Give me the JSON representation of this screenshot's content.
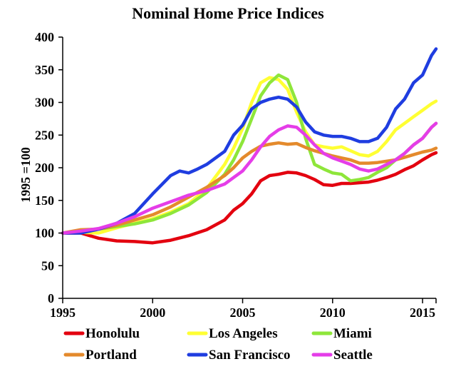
{
  "chart_data": {
    "type": "line",
    "title": "Nominal Home Price Indices",
    "xlabel": "",
    "ylabel": "1995 =100",
    "xlim": [
      1995,
      2015.75
    ],
    "ylim": [
      0,
      400
    ],
    "xticks": [
      1995,
      2000,
      2005,
      2010,
      2015
    ],
    "yticks": [
      0,
      50,
      100,
      150,
      200,
      250,
      300,
      350,
      400
    ],
    "grid": false,
    "legend_position": "bottom",
    "series": [
      {
        "name": "Honolulu",
        "color": "#e3000f",
        "points": [
          [
            1995,
            100
          ],
          [
            1996,
            100
          ],
          [
            1997,
            92
          ],
          [
            1998,
            88
          ],
          [
            1999,
            87
          ],
          [
            2000,
            85
          ],
          [
            2001,
            89
          ],
          [
            2002,
            96
          ],
          [
            2003,
            105
          ],
          [
            2004,
            120
          ],
          [
            2004.5,
            135
          ],
          [
            2005,
            145
          ],
          [
            2005.5,
            160
          ],
          [
            2006,
            180
          ],
          [
            2006.5,
            188
          ],
          [
            2007,
            190
          ],
          [
            2007.5,
            193
          ],
          [
            2008,
            192
          ],
          [
            2008.5,
            188
          ],
          [
            2009,
            182
          ],
          [
            2009.5,
            174
          ],
          [
            2010,
            173
          ],
          [
            2010.5,
            176
          ],
          [
            2011,
            176
          ],
          [
            2011.5,
            177
          ],
          [
            2012,
            178
          ],
          [
            2012.5,
            181
          ],
          [
            2013,
            185
          ],
          [
            2013.5,
            190
          ],
          [
            2014,
            197
          ],
          [
            2014.5,
            203
          ],
          [
            2015,
            212
          ],
          [
            2015.5,
            220
          ],
          [
            2015.75,
            223
          ]
        ]
      },
      {
        "name": "Los Angeles",
        "color": "#ffff33",
        "points": [
          [
            1995,
            100
          ],
          [
            1996,
            101
          ],
          [
            1997,
            100
          ],
          [
            1998,
            108
          ],
          [
            1999,
            115
          ],
          [
            2000,
            122
          ],
          [
            2001,
            132
          ],
          [
            2002,
            145
          ],
          [
            2003,
            168
          ],
          [
            2004,
            205
          ],
          [
            2004.5,
            230
          ],
          [
            2005,
            260
          ],
          [
            2005.5,
            300
          ],
          [
            2006,
            330
          ],
          [
            2006.5,
            338
          ],
          [
            2007,
            335
          ],
          [
            2007.5,
            320
          ],
          [
            2008,
            285
          ],
          [
            2008.5,
            255
          ],
          [
            2009,
            235
          ],
          [
            2009.5,
            232
          ],
          [
            2010,
            230
          ],
          [
            2010.5,
            232
          ],
          [
            2011,
            226
          ],
          [
            2011.5,
            220
          ],
          [
            2012,
            218
          ],
          [
            2012.5,
            225
          ],
          [
            2013,
            240
          ],
          [
            2013.5,
            258
          ],
          [
            2014,
            268
          ],
          [
            2014.5,
            278
          ],
          [
            2015,
            288
          ],
          [
            2015.5,
            298
          ],
          [
            2015.75,
            302
          ]
        ]
      },
      {
        "name": "Miami",
        "color": "#8ee63a",
        "points": [
          [
            1995,
            100
          ],
          [
            1996,
            102
          ],
          [
            1997,
            106
          ],
          [
            1998,
            110
          ],
          [
            1999,
            114
          ],
          [
            2000,
            120
          ],
          [
            2001,
            130
          ],
          [
            2002,
            143
          ],
          [
            2003,
            162
          ],
          [
            2004,
            190
          ],
          [
            2004.5,
            212
          ],
          [
            2005,
            240
          ],
          [
            2005.5,
            275
          ],
          [
            2006,
            310
          ],
          [
            2006.5,
            330
          ],
          [
            2007,
            342
          ],
          [
            2007.5,
            335
          ],
          [
            2008,
            300
          ],
          [
            2008.5,
            245
          ],
          [
            2009,
            205
          ],
          [
            2009.5,
            198
          ],
          [
            2010,
            192
          ],
          [
            2010.5,
            190
          ],
          [
            2011,
            180
          ],
          [
            2011.5,
            182
          ],
          [
            2012,
            185
          ],
          [
            2012.5,
            193
          ],
          [
            2013,
            200
          ],
          [
            2013.5,
            212
          ],
          [
            2014,
            222
          ],
          [
            2014.5,
            235
          ],
          [
            2015,
            245
          ],
          [
            2015.5,
            262
          ],
          [
            2015.75,
            268
          ]
        ]
      },
      {
        "name": "Portland",
        "color": "#e48a2c",
        "points": [
          [
            1995,
            100
          ],
          [
            1996,
            105
          ],
          [
            1997,
            106
          ],
          [
            1998,
            112
          ],
          [
            1999,
            120
          ],
          [
            2000,
            128
          ],
          [
            2001,
            140
          ],
          [
            2002,
            155
          ],
          [
            2003,
            170
          ],
          [
            2004,
            188
          ],
          [
            2004.5,
            200
          ],
          [
            2005,
            215
          ],
          [
            2005.5,
            225
          ],
          [
            2006,
            233
          ],
          [
            2006.5,
            236
          ],
          [
            2007,
            238
          ],
          [
            2007.5,
            236
          ],
          [
            2008,
            237
          ],
          [
            2008.5,
            231
          ],
          [
            2009,
            226
          ],
          [
            2009.5,
            222
          ],
          [
            2010,
            218
          ],
          [
            2010.5,
            215
          ],
          [
            2011,
            212
          ],
          [
            2011.5,
            207
          ],
          [
            2012,
            207
          ],
          [
            2012.5,
            208
          ],
          [
            2013,
            210
          ],
          [
            2013.5,
            212
          ],
          [
            2014,
            216
          ],
          [
            2014.5,
            220
          ],
          [
            2015,
            224
          ],
          [
            2015.5,
            227
          ],
          [
            2015.75,
            230
          ]
        ]
      },
      {
        "name": "San Francisco",
        "color": "#1f3de0",
        "points": [
          [
            1995,
            100
          ],
          [
            1996,
            100
          ],
          [
            1997,
            106
          ],
          [
            1998,
            115
          ],
          [
            1999,
            130
          ],
          [
            2000,
            160
          ],
          [
            2001,
            188
          ],
          [
            2001.5,
            195
          ],
          [
            2002,
            192
          ],
          [
            2002.5,
            198
          ],
          [
            2003,
            205
          ],
          [
            2004,
            225
          ],
          [
            2004.5,
            250
          ],
          [
            2005,
            265
          ],
          [
            2005.5,
            290
          ],
          [
            2006,
            300
          ],
          [
            2006.5,
            305
          ],
          [
            2007,
            308
          ],
          [
            2007.5,
            305
          ],
          [
            2008,
            293
          ],
          [
            2008.5,
            270
          ],
          [
            2009,
            255
          ],
          [
            2009.5,
            250
          ],
          [
            2010,
            248
          ],
          [
            2010.5,
            248
          ],
          [
            2011,
            245
          ],
          [
            2011.5,
            240
          ],
          [
            2012,
            240
          ],
          [
            2012.5,
            245
          ],
          [
            2013,
            262
          ],
          [
            2013.5,
            290
          ],
          [
            2014,
            305
          ],
          [
            2014.5,
            330
          ],
          [
            2015,
            342
          ],
          [
            2015.5,
            372
          ],
          [
            2015.75,
            382
          ]
        ]
      },
      {
        "name": "Seattle",
        "color": "#e53de8",
        "points": [
          [
            1995,
            100
          ],
          [
            1996,
            103
          ],
          [
            1997,
            107
          ],
          [
            1998,
            115
          ],
          [
            1999,
            125
          ],
          [
            2000,
            138
          ],
          [
            2001,
            148
          ],
          [
            2002,
            158
          ],
          [
            2003,
            165
          ],
          [
            2004,
            175
          ],
          [
            2004.5,
            185
          ],
          [
            2005,
            195
          ],
          [
            2005.5,
            212
          ],
          [
            2006,
            232
          ],
          [
            2006.5,
            248
          ],
          [
            2007,
            258
          ],
          [
            2007.5,
            264
          ],
          [
            2008,
            262
          ],
          [
            2008.5,
            250
          ],
          [
            2009,
            235
          ],
          [
            2009.5,
            222
          ],
          [
            2010,
            215
          ],
          [
            2010.5,
            210
          ],
          [
            2011,
            205
          ],
          [
            2011.5,
            198
          ],
          [
            2012,
            195
          ],
          [
            2012.5,
            198
          ],
          [
            2013,
            205
          ],
          [
            2013.5,
            212
          ],
          [
            2014,
            222
          ],
          [
            2014.5,
            235
          ],
          [
            2015,
            245
          ],
          [
            2015.5,
            262
          ],
          [
            2015.75,
            268
          ]
        ]
      }
    ]
  }
}
